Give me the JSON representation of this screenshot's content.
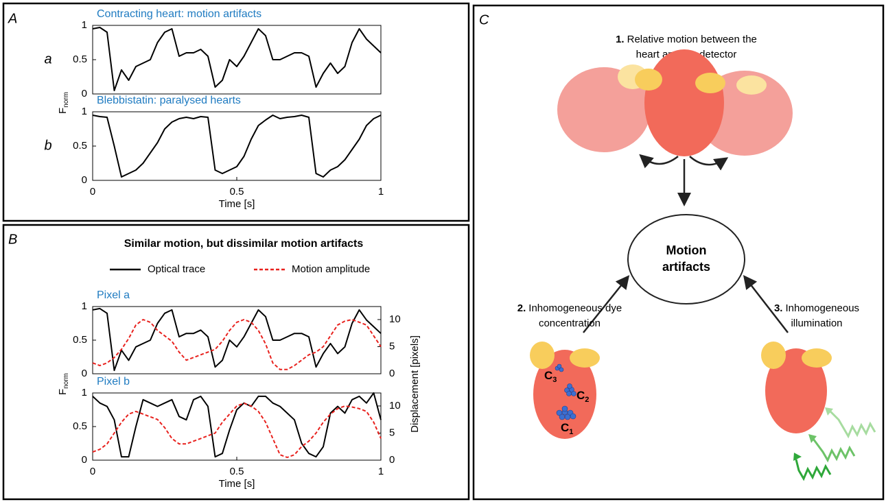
{
  "panels": [
    "A",
    "B",
    "C"
  ],
  "panel_b_title": "Similar motion, but dissimilar motion artifacts",
  "chart_data": [
    {
      "type": "line",
      "title": "Contracting heart: motion artifacts",
      "row_label": "a",
      "ylabel": {
        "main": "F",
        "sub": "norm"
      },
      "x": [
        0,
        0.025,
        0.05,
        0.075,
        0.1,
        0.125,
        0.15,
        0.175,
        0.2,
        0.225,
        0.25,
        0.275,
        0.3,
        0.325,
        0.35,
        0.375,
        0.4,
        0.425,
        0.45,
        0.475,
        0.5,
        0.525,
        0.55,
        0.575,
        0.6,
        0.625,
        0.65,
        0.675,
        0.7,
        0.725,
        0.75,
        0.775,
        0.8,
        0.825,
        0.85,
        0.875,
        0.9,
        0.925,
        0.95,
        0.975,
        1
      ],
      "series": [
        {
          "color": "#000000",
          "values": [
            0.95,
            0.97,
            0.9,
            0.05,
            0.35,
            0.2,
            0.4,
            0.45,
            0.5,
            0.75,
            0.9,
            0.95,
            0.55,
            0.6,
            0.6,
            0.65,
            0.55,
            0.1,
            0.2,
            0.5,
            0.4,
            0.55,
            0.75,
            0.95,
            0.85,
            0.5,
            0.5,
            0.55,
            0.6,
            0.6,
            0.55,
            0.1,
            0.3,
            0.45,
            0.3,
            0.4,
            0.75,
            0.95,
            0.8,
            0.7,
            0.6
          ]
        }
      ],
      "xlim": [
        0,
        1
      ],
      "ylim": [
        0,
        1
      ],
      "yticks": [
        0,
        0.5,
        1
      ]
    },
    {
      "type": "line",
      "title": "Blebbistatin: paralysed hearts",
      "row_label": "b",
      "xlabel": "Time [s]",
      "x": [
        0,
        0.025,
        0.05,
        0.075,
        0.1,
        0.125,
        0.15,
        0.175,
        0.2,
        0.225,
        0.25,
        0.275,
        0.3,
        0.325,
        0.35,
        0.375,
        0.4,
        0.425,
        0.45,
        0.475,
        0.5,
        0.525,
        0.55,
        0.575,
        0.6,
        0.625,
        0.65,
        0.675,
        0.7,
        0.725,
        0.75,
        0.775,
        0.8,
        0.825,
        0.85,
        0.875,
        0.9,
        0.925,
        0.95,
        0.975,
        1
      ],
      "series": [
        {
          "color": "#000000",
          "values": [
            0.95,
            0.93,
            0.92,
            0.5,
            0.05,
            0.1,
            0.15,
            0.25,
            0.4,
            0.55,
            0.75,
            0.85,
            0.9,
            0.92,
            0.9,
            0.93,
            0.92,
            0.15,
            0.1,
            0.15,
            0.2,
            0.35,
            0.6,
            0.8,
            0.88,
            0.95,
            0.9,
            0.92,
            0.93,
            0.95,
            0.92,
            0.1,
            0.05,
            0.15,
            0.2,
            0.3,
            0.45,
            0.6,
            0.8,
            0.9,
            0.95
          ]
        }
      ],
      "xlim": [
        0,
        1
      ],
      "xticks": [
        0,
        0.5,
        1
      ],
      "ylim": [
        0,
        1
      ],
      "yticks": [
        0,
        0.5,
        1
      ]
    },
    {
      "type": "line",
      "title": "Pixel a",
      "ylabel": {
        "main": "F",
        "sub": "norm"
      },
      "y2label": "Displacement [pixels]",
      "x": [
        0,
        0.025,
        0.05,
        0.075,
        0.1,
        0.125,
        0.15,
        0.175,
        0.2,
        0.225,
        0.25,
        0.275,
        0.3,
        0.325,
        0.35,
        0.375,
        0.4,
        0.425,
        0.45,
        0.475,
        0.5,
        0.525,
        0.55,
        0.575,
        0.6,
        0.625,
        0.65,
        0.675,
        0.7,
        0.725,
        0.75,
        0.775,
        0.8,
        0.825,
        0.85,
        0.875,
        0.9,
        0.925,
        0.95,
        0.975,
        1
      ],
      "series": [
        {
          "name": "Optical trace",
          "color": "#000000",
          "style": "solid",
          "values": [
            0.95,
            0.97,
            0.9,
            0.05,
            0.35,
            0.2,
            0.4,
            0.45,
            0.5,
            0.75,
            0.9,
            0.95,
            0.55,
            0.6,
            0.6,
            0.65,
            0.55,
            0.1,
            0.2,
            0.5,
            0.4,
            0.55,
            0.75,
            0.95,
            0.85,
            0.5,
            0.5,
            0.55,
            0.6,
            0.6,
            0.55,
            0.1,
            0.3,
            0.45,
            0.3,
            0.4,
            0.75,
            0.95,
            0.8,
            0.7,
            0.6
          ]
        },
        {
          "name": "Motion amplitude",
          "color": "#e8211d",
          "style": "dashed",
          "axis": "y2",
          "values": [
            2,
            1.5,
            2,
            3,
            4.5,
            6.5,
            9,
            10,
            9.5,
            8,
            7,
            6,
            4,
            2.5,
            3,
            3.5,
            4,
            4.5,
            6,
            8,
            9.5,
            10,
            9.5,
            8,
            5.5,
            2,
            0.8,
            0.8,
            1.5,
            2.5,
            3.5,
            4,
            5,
            7,
            9,
            9.7,
            10,
            9.5,
            9,
            7,
            5
          ]
        }
      ],
      "xlim": [
        0,
        1
      ],
      "ylim": [
        0,
        1
      ],
      "yticks": [
        0,
        0.5,
        1
      ],
      "y2lim": [
        0,
        12.4
      ],
      "y2ticks": [
        0,
        5,
        10
      ]
    },
    {
      "type": "line",
      "title": "Pixel b",
      "xlabel": "Time [s]",
      "x": [
        0,
        0.025,
        0.05,
        0.075,
        0.1,
        0.125,
        0.15,
        0.175,
        0.2,
        0.225,
        0.25,
        0.275,
        0.3,
        0.325,
        0.35,
        0.375,
        0.4,
        0.425,
        0.45,
        0.475,
        0.5,
        0.525,
        0.55,
        0.575,
        0.6,
        0.625,
        0.65,
        0.675,
        0.7,
        0.725,
        0.75,
        0.775,
        0.8,
        0.825,
        0.85,
        0.875,
        0.9,
        0.925,
        0.95,
        0.975,
        1
      ],
      "series": [
        {
          "color": "#000000",
          "style": "solid",
          "values": [
            0.95,
            0.85,
            0.8,
            0.6,
            0.05,
            0.05,
            0.5,
            0.9,
            0.85,
            0.8,
            0.85,
            0.9,
            0.65,
            0.6,
            0.9,
            0.95,
            0.8,
            0.05,
            0.1,
            0.45,
            0.75,
            0.85,
            0.8,
            0.95,
            0.95,
            0.85,
            0.8,
            0.7,
            0.6,
            0.25,
            0.1,
            0.05,
            0.2,
            0.7,
            0.8,
            0.7,
            0.9,
            0.95,
            0.85,
            1,
            0.6
          ]
        },
        {
          "color": "#e8211d",
          "style": "dashed",
          "axis": "y2",
          "values": [
            1.5,
            2,
            3,
            5,
            7,
            8.5,
            9,
            8.5,
            8,
            7.5,
            6,
            4,
            3,
            3,
            3.5,
            4,
            4.5,
            5,
            7,
            8.5,
            10,
            10.5,
            10,
            9,
            7,
            4,
            1,
            0.5,
            1,
            2.5,
            3.5,
            5,
            7,
            8.5,
            9.5,
            10,
            9.8,
            9.5,
            9,
            7,
            4
          ]
        }
      ],
      "xlim": [
        0,
        1
      ],
      "xticks": [
        0,
        0.5,
        1
      ],
      "ylim": [
        0,
        1
      ],
      "yticks": [
        0,
        0.5,
        1
      ],
      "y2lim": [
        0,
        12.4
      ],
      "y2ticks": [
        0,
        5,
        10
      ]
    }
  ],
  "diagram": {
    "cause1": {
      "num": "1.",
      "lines": [
        "Relative motion between the",
        "heart and the detector"
      ]
    },
    "center": [
      "Motion",
      "artifacts"
    ],
    "cause2": {
      "num": "2.",
      "lines": [
        "Inhomogeneous dye",
        "concentration"
      ]
    },
    "cause3": {
      "num": "3.",
      "lines": [
        "Inhomogeneous",
        "illumination"
      ]
    },
    "concentrations": [
      {
        "main": "C",
        "sub": "3"
      },
      {
        "main": "C",
        "sub": "2"
      },
      {
        "main": "C",
        "sub": "1"
      }
    ]
  }
}
